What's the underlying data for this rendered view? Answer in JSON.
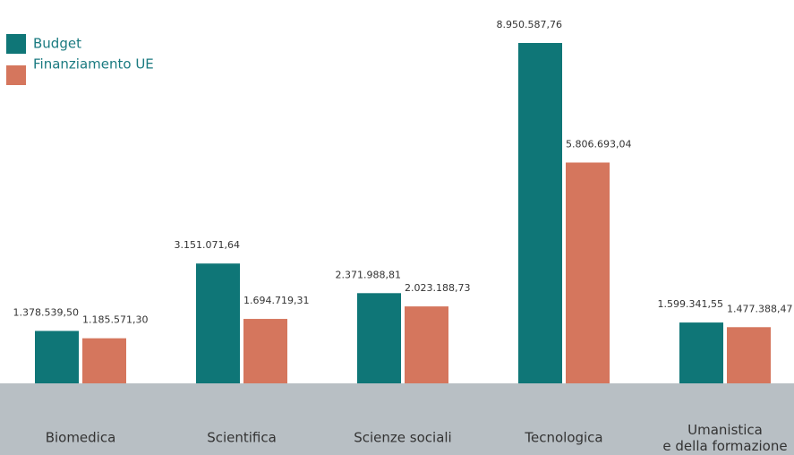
{
  "chart_data": {
    "type": "bar",
    "categories": [
      "Biomedica",
      "Scientifica",
      "Scienze sociali",
      "Tecnologica",
      "Umanistica\ne della formazione"
    ],
    "series": [
      {
        "name": "Budget",
        "color": "#0f7677",
        "values": [
          1378539.5,
          3151071.64,
          2371988.81,
          8950587.76,
          1599341.55
        ],
        "value_labels": [
          "1.378.539,50",
          "3.151.071,64",
          "2.371.988,81",
          "8.950.587,76",
          "1.599.341,55"
        ]
      },
      {
        "name": "Finanziamento UE",
        "color": "#d5765d",
        "values": [
          1185571.3,
          1694719.31,
          2023188.73,
          5806693.04,
          1477388.47
        ],
        "value_labels": [
          "1.185.571,30",
          "1.694.719,31",
          "2.023.188,73",
          "5.806.693,04",
          "1.477.388,47"
        ]
      }
    ]
  }
}
